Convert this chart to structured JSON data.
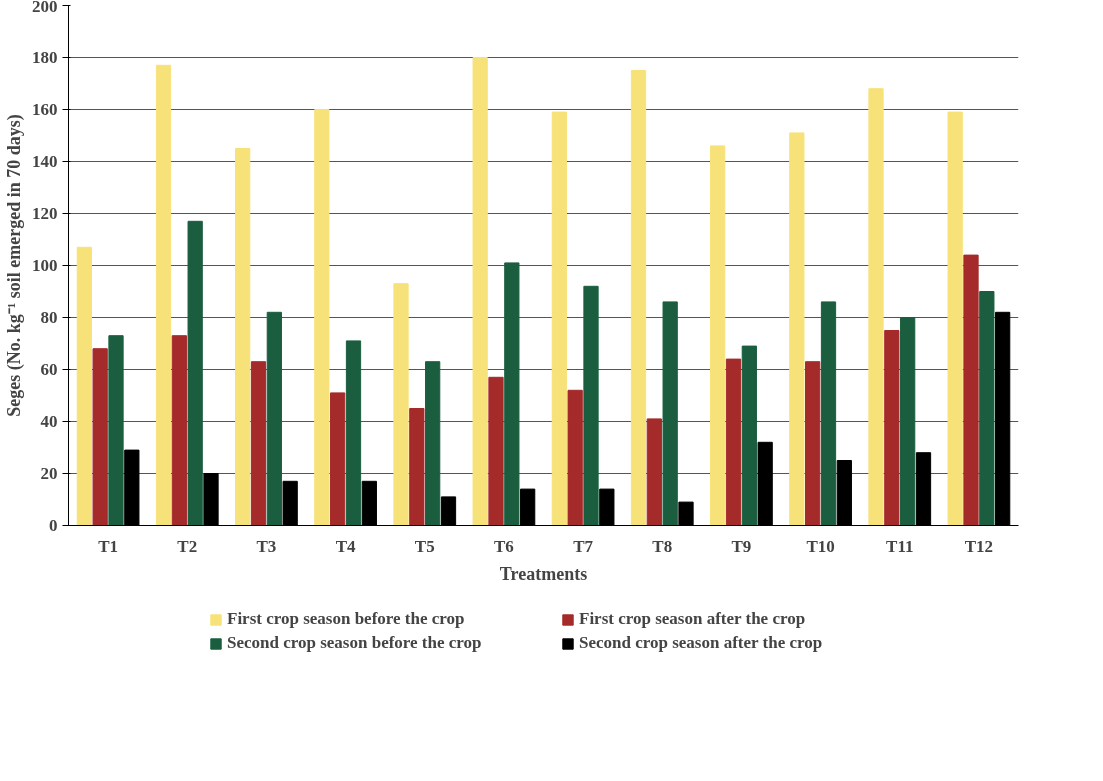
{
  "chart_data": {
    "type": "bar",
    "xlabel": "Treatments",
    "ylabel": "Seges (No. kg⁻¹ soil emerged in 70 days)",
    "categories": [
      "T1",
      "T2",
      "T3",
      "T4",
      "T5",
      "T6",
      "T7",
      "T8",
      "T9",
      "T10",
      "T11",
      "T12"
    ],
    "series": [
      {
        "name": "First crop season before the crop",
        "color": "#f7e27a",
        "values": [
          107,
          177,
          145,
          160,
          93,
          180,
          159,
          175,
          146,
          151,
          168,
          159
        ]
      },
      {
        "name": "First crop season after the crop",
        "color": "#a52a2a",
        "values": [
          68,
          73,
          63,
          51,
          45,
          57,
          52,
          41,
          64,
          63,
          75,
          104
        ]
      },
      {
        "name": "Second crop season before the crop",
        "color": "#1b5e3f",
        "values": [
          73,
          117,
          82,
          71,
          63,
          101,
          92,
          86,
          69,
          86,
          80,
          90
        ]
      },
      {
        "name": "Second crop season after the crop",
        "color": "#000000",
        "values": [
          29,
          20,
          17,
          17,
          11,
          14,
          14,
          9,
          32,
          25,
          28,
          82
        ]
      }
    ],
    "ylim": [
      0,
      200
    ],
    "yticks": [
      0,
      20,
      40,
      60,
      80,
      100,
      120,
      140,
      160,
      180,
      200
    ],
    "grid": "y",
    "legend": "bottom"
  }
}
